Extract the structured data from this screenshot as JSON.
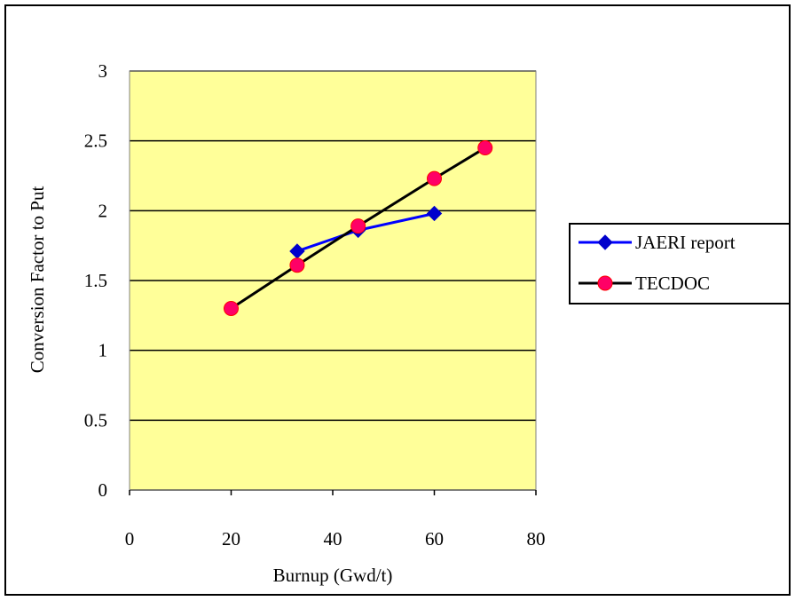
{
  "chart_data": {
    "type": "line",
    "title": "",
    "xlabel": "Burnup (Gwd/t)",
    "ylabel": "Conversion Factor to Put",
    "xlim": [
      0,
      80
    ],
    "ylim": [
      0,
      3
    ],
    "x_ticks": [
      0,
      20,
      40,
      60,
      80
    ],
    "y_ticks": [
      0,
      0.5,
      1,
      1.5,
      2,
      2.5,
      3
    ],
    "x_tick_labels": [
      "0",
      "20",
      "40",
      "60",
      "80"
    ],
    "y_tick_labels": [
      "0",
      "0.5",
      "1",
      "1.5",
      "2",
      "2.5",
      "3"
    ],
    "grid": "horizontal",
    "plot_background": "#FFFF99",
    "legend_position": "right",
    "series": [
      {
        "name": "JAERI report",
        "marker": "diamond",
        "color": "#0000FF",
        "marker_color": "#0000CC",
        "x": [
          33,
          45,
          60
        ],
        "y": [
          1.71,
          1.86,
          1.98
        ]
      },
      {
        "name": "TECDOC",
        "marker": "circle",
        "color": "#000000",
        "marker_color": "#FF0066",
        "x": [
          20,
          33,
          45,
          60,
          70
        ],
        "y": [
          1.3,
          1.61,
          1.89,
          2.23,
          2.45
        ]
      }
    ]
  }
}
